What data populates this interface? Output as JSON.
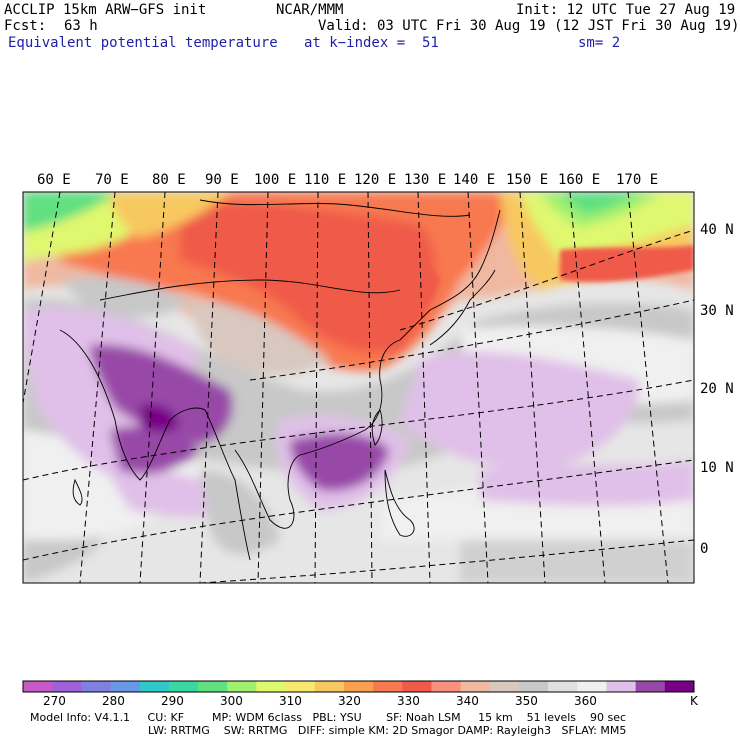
{
  "header": {
    "model": "ACCLIP 15km ARW−GFS init",
    "org": "NCAR/MMM",
    "init": "Init: 12 UTC Tue 27 Aug 19",
    "fcst_label": "Fcst:",
    "fcst_value": "63 h",
    "valid": "Valid: 03 UTC Fri 30 Aug 19 (12 JST Fri 30 Aug 19)",
    "field": "Equivalent potential temperature",
    "level": "at k−index =  51",
    "smooth": "sm= 2"
  },
  "map": {
    "lon_labels": [
      "60 E",
      "70 E",
      "80 E",
      "90 E",
      "100 E",
      "110 E",
      "120 E",
      "130 E",
      "140 E",
      "150 E",
      "160 E",
      "170 E"
    ],
    "lat_labels": [
      "40 N",
      "30 N",
      "20 N",
      "10 N",
      "0"
    ]
  },
  "colorbar": {
    "colors": [
      "#c85ac8",
      "#a060d8",
      "#8080e0",
      "#6a98e8",
      "#30c8c8",
      "#3ad8a0",
      "#60e080",
      "#a0f070",
      "#e0f870",
      "#f8e870",
      "#f8c860",
      "#f8a050",
      "#f87850",
      "#f05a48",
      "#f89080",
      "#f0b8a0",
      "#d8c8c0",
      "#c8c8c8",
      "#e0e0e0",
      "#f0f0f0",
      "#e0c0e8",
      "#9848a8",
      "#780088"
    ],
    "labels": [
      "270",
      "280",
      "290",
      "300",
      "310",
      "320",
      "330",
      "340",
      "350",
      "360"
    ],
    "unit": "K"
  },
  "footer": {
    "line1": "Model Info: V4.1.1     CU: KF        MP: WDM 6class   PBL: YSU       SF: Noah LSM     15 km    51 levels    90 sec",
    "line2": "LW: RRTMG    SW: RRTMG   DIFF: simple KM: 2D Smagor DAMP: Rayleigh3   SFLAY: MM5"
  }
}
